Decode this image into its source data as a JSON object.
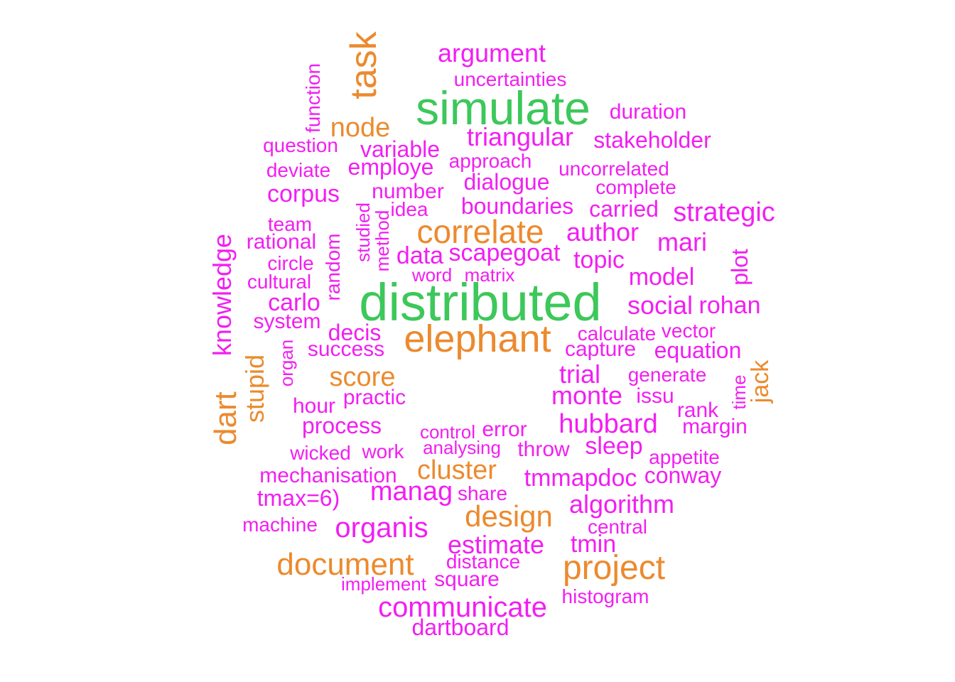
{
  "colors": {
    "green": "#3cc85a",
    "orange": "#ec8a2e",
    "magenta": "#f21ef2",
    "background": "#ffffff"
  },
  "words": [
    {
      "text": "distributed",
      "color": "green"
    },
    {
      "text": "simulate",
      "color": "green"
    },
    {
      "text": "elephant",
      "color": "orange"
    },
    {
      "text": "correlate",
      "color": "orange"
    },
    {
      "text": "project",
      "color": "orange"
    },
    {
      "text": "task",
      "color": "orange"
    },
    {
      "text": "document",
      "color": "orange"
    },
    {
      "text": "design",
      "color": "orange"
    },
    {
      "text": "score",
      "color": "orange"
    },
    {
      "text": "cluster",
      "color": "orange"
    },
    {
      "text": "node",
      "color": "orange"
    },
    {
      "text": "dart",
      "color": "orange"
    },
    {
      "text": "stupid",
      "color": "orange"
    },
    {
      "text": "jack",
      "color": "orange"
    },
    {
      "text": "argument",
      "color": "magenta"
    },
    {
      "text": "uncertainties",
      "color": "magenta"
    },
    {
      "text": "duration",
      "color": "magenta"
    },
    {
      "text": "function",
      "color": "magenta"
    },
    {
      "text": "triangular",
      "color": "magenta"
    },
    {
      "text": "stakeholder",
      "color": "magenta"
    },
    {
      "text": "question",
      "color": "magenta"
    },
    {
      "text": "variable",
      "color": "magenta"
    },
    {
      "text": "approach",
      "color": "magenta"
    },
    {
      "text": "deviate",
      "color": "magenta"
    },
    {
      "text": "employe",
      "color": "magenta"
    },
    {
      "text": "uncorrelated",
      "color": "magenta"
    },
    {
      "text": "dialogue",
      "color": "magenta"
    },
    {
      "text": "corpus",
      "color": "magenta"
    },
    {
      "text": "number",
      "color": "magenta"
    },
    {
      "text": "complete",
      "color": "magenta"
    },
    {
      "text": "idea",
      "color": "magenta"
    },
    {
      "text": "boundaries",
      "color": "magenta"
    },
    {
      "text": "carried",
      "color": "magenta"
    },
    {
      "text": "strategic",
      "color": "magenta"
    },
    {
      "text": "team",
      "color": "magenta"
    },
    {
      "text": "studied",
      "color": "magenta"
    },
    {
      "text": "method",
      "color": "magenta"
    },
    {
      "text": "author",
      "color": "magenta"
    },
    {
      "text": "knowledge",
      "color": "magenta"
    },
    {
      "text": "rational",
      "color": "magenta"
    },
    {
      "text": "random",
      "color": "magenta"
    },
    {
      "text": "mari",
      "color": "magenta"
    },
    {
      "text": "circle",
      "color": "magenta"
    },
    {
      "text": "data",
      "color": "magenta"
    },
    {
      "text": "scapegoat",
      "color": "magenta"
    },
    {
      "text": "topic",
      "color": "magenta"
    },
    {
      "text": "plot",
      "color": "magenta"
    },
    {
      "text": "cultural",
      "color": "magenta"
    },
    {
      "text": "word",
      "color": "magenta"
    },
    {
      "text": "matrix",
      "color": "magenta"
    },
    {
      "text": "model",
      "color": "magenta"
    },
    {
      "text": "carlo",
      "color": "magenta"
    },
    {
      "text": "social",
      "color": "magenta"
    },
    {
      "text": "rohan",
      "color": "magenta"
    },
    {
      "text": "system",
      "color": "magenta"
    },
    {
      "text": "decis",
      "color": "magenta"
    },
    {
      "text": "calculate",
      "color": "magenta"
    },
    {
      "text": "vector",
      "color": "magenta"
    },
    {
      "text": "organ",
      "color": "magenta"
    },
    {
      "text": "success",
      "color": "magenta"
    },
    {
      "text": "capture",
      "color": "magenta"
    },
    {
      "text": "equation",
      "color": "magenta"
    },
    {
      "text": "trial",
      "color": "magenta"
    },
    {
      "text": "generate",
      "color": "magenta"
    },
    {
      "text": "practic",
      "color": "magenta"
    },
    {
      "text": "monte",
      "color": "magenta"
    },
    {
      "text": "issu",
      "color": "magenta"
    },
    {
      "text": "time",
      "color": "magenta"
    },
    {
      "text": "hour",
      "color": "magenta"
    },
    {
      "text": "rank",
      "color": "magenta"
    },
    {
      "text": "process",
      "color": "magenta"
    },
    {
      "text": "hubbard",
      "color": "magenta"
    },
    {
      "text": "margin",
      "color": "magenta"
    },
    {
      "text": "control",
      "color": "magenta"
    },
    {
      "text": "error",
      "color": "magenta"
    },
    {
      "text": "wicked",
      "color": "magenta"
    },
    {
      "text": "work",
      "color": "magenta"
    },
    {
      "text": "analysing",
      "color": "magenta"
    },
    {
      "text": "throw",
      "color": "magenta"
    },
    {
      "text": "sleep",
      "color": "magenta"
    },
    {
      "text": "appetite",
      "color": "magenta"
    },
    {
      "text": "mechanisation",
      "color": "magenta"
    },
    {
      "text": "tmmapdoc",
      "color": "magenta"
    },
    {
      "text": "conway",
      "color": "magenta"
    },
    {
      "text": "tmax=6)",
      "color": "magenta"
    },
    {
      "text": "manag",
      "color": "magenta"
    },
    {
      "text": "share",
      "color": "magenta"
    },
    {
      "text": "algorithm",
      "color": "magenta"
    },
    {
      "text": "machine",
      "color": "magenta"
    },
    {
      "text": "organis",
      "color": "magenta"
    },
    {
      "text": "central",
      "color": "magenta"
    },
    {
      "text": "estimate",
      "color": "magenta"
    },
    {
      "text": "tmin",
      "color": "magenta"
    },
    {
      "text": "distance",
      "color": "magenta"
    },
    {
      "text": "implement",
      "color": "magenta"
    },
    {
      "text": "square",
      "color": "magenta"
    },
    {
      "text": "histogram",
      "color": "magenta"
    },
    {
      "text": "communicate",
      "color": "magenta"
    },
    {
      "text": "dartboard",
      "color": "magenta"
    }
  ]
}
